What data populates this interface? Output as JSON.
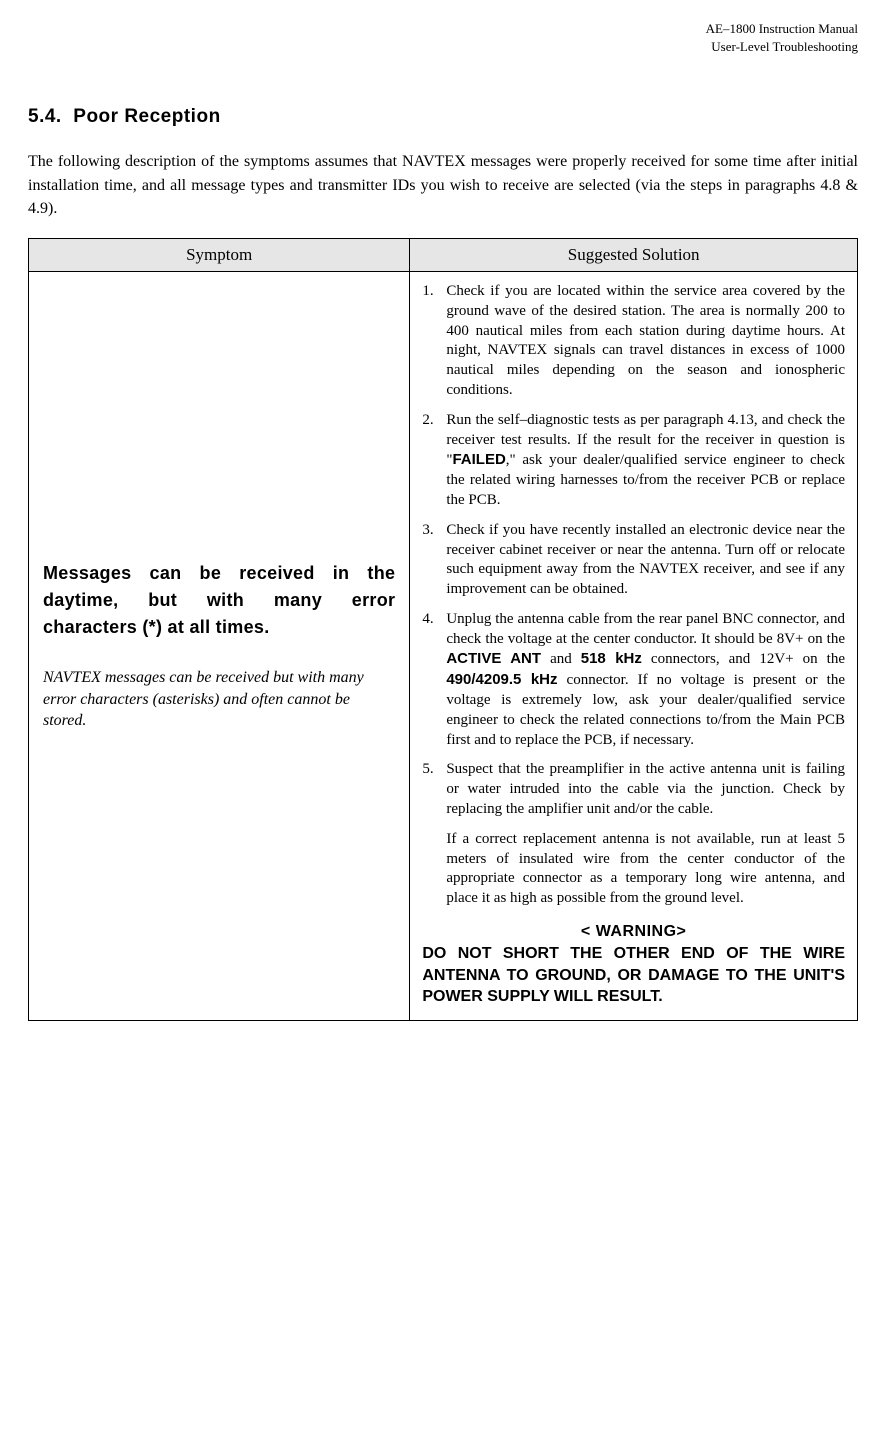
{
  "header": {
    "line1": "AE–1800 Instruction Manual",
    "line2": "User-Level Troubleshooting"
  },
  "section": {
    "number": "5.4.",
    "title": "Poor Reception"
  },
  "intro": "The following description of the symptoms assumes that NAVTEX messages were properly received for some time after initial installation time, and all message types and transmitter IDs you wish to receive are selected (via the steps in paragraphs 4.8 & 4.9).",
  "table": {
    "headers": {
      "symptom": "Symptom",
      "solution": "Suggested Solution"
    },
    "row": {
      "symptom_main": "Messages can be received in the daytime, but with many error characters (*) at all times.",
      "symptom_sub": "NAVTEX messages can be received but with many error characters (asterisks) and often cannot be stored.",
      "solutions": {
        "item1_num": "1.",
        "item1": "Check if you are located within the service area covered by the ground wave of the desired station. The area is normally 200 to 400 nautical miles from each station during daytime hours. At night, NAVTEX signals can travel distances in excess of 1000 nautical miles depending on the season and ionospheric conditions.",
        "item2_num": "2.",
        "item2_a": "Run the self–diagnostic tests as per paragraph 4.13, and check the receiver test results. If the result for the receiver in question is \"",
        "item2_failed": "FAILED",
        "item2_b": ",\" ask your dealer/qualified service engineer to check the related wiring harnesses to/from the receiver PCB or replace the PCB.",
        "item3_num": "3.",
        "item3": "Check if you have recently installed an electronic device near the receiver cabinet receiver or near the antenna. Turn off or relocate such equipment away from the NAVTEX receiver, and see if any improvement can be obtained.",
        "item4_num": "4.",
        "item4_a": "Unplug the antenna cable from the rear panel BNC connector, and check the voltage at the center conductor. It should be 8V+ on the ",
        "item4_active": "ACTIVE ANT",
        "item4_b": " and ",
        "item4_518": "518 kHz",
        "item4_c": " connectors, and 12V+ on the ",
        "item4_490": "490/4209.5 kHz",
        "item4_d": " connector.  If no voltage is present or the voltage is extremely low, ask your dealer/qualified service engineer to check the related connections to/from the Main PCB first and to  replace the PCB, if necessary.",
        "item5_num": "5.",
        "item5": "Suspect that the preamplifier in the active antenna unit is failing or water intruded into the cable via the junction. Check by replacing the amplifier unit and/or the cable.",
        "item5_cont": "If a correct replacement antenna is not available, run at least 5 meters of insulated wire from the center conductor of the appropriate connector as a temporary long wire antenna, and place it as high as possible from the ground level.",
        "warning_heading": "< WARNING>",
        "warning_body": "DO NOT SHORT THE OTHER END OF THE WIRE ANTENNA TO GROUND, OR DAMAGE TO THE UNIT'S POWER SUPPLY WILL RESULT."
      }
    }
  }
}
